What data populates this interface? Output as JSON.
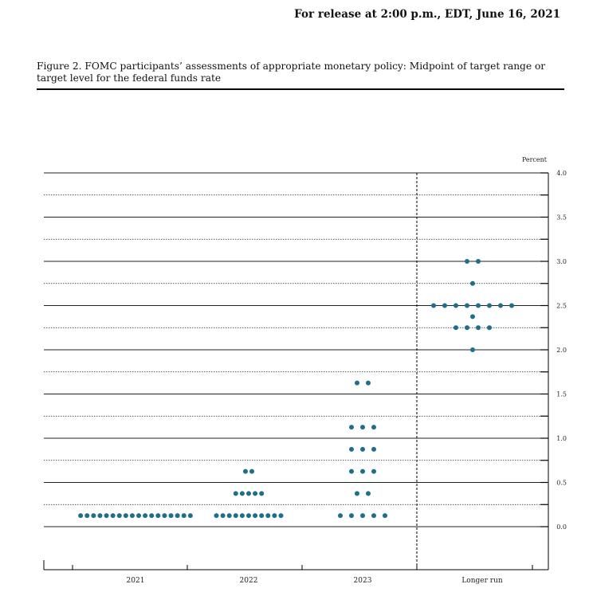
{
  "header": {
    "release": "For release at 2:00 p.m., EDT, June 16, 2021",
    "caption": "Figure 2.  FOMC participants’ assessments of appropriate monetary policy: Midpoint of target range or target level for the federal funds rate"
  },
  "chart_data": {
    "type": "scatter",
    "title": "",
    "ylabel": "Percent",
    "ylim": [
      0,
      4.0
    ],
    "y_ticks": [
      "0.0",
      "0.5",
      "1.0",
      "1.5",
      "2.0",
      "2.5",
      "3.0",
      "3.5",
      "4.0"
    ],
    "categories": [
      "2021",
      "2022",
      "2023",
      "Longer run"
    ],
    "grid": "solid at whole and half percents, dotted at quarter percents",
    "dot_color": "#1f6f8b",
    "dots": [
      {
        "category": "2021",
        "y": 0.125,
        "count": 18
      },
      {
        "category": "2022",
        "y": 0.125,
        "count": 11
      },
      {
        "category": "2022",
        "y": 0.375,
        "count": 5
      },
      {
        "category": "2022",
        "y": 0.625,
        "count": 2
      },
      {
        "category": "2023",
        "y": 0.125,
        "count": 5
      },
      {
        "category": "2023",
        "y": 0.375,
        "count": 2
      },
      {
        "category": "2023",
        "y": 0.625,
        "count": 3
      },
      {
        "category": "2023",
        "y": 0.875,
        "count": 3
      },
      {
        "category": "2023",
        "y": 1.125,
        "count": 3
      },
      {
        "category": "2023",
        "y": 1.625,
        "count": 2
      },
      {
        "category": "Longer run",
        "y": 2.0,
        "count": 1
      },
      {
        "category": "Longer run",
        "y": 2.25,
        "count": 4
      },
      {
        "category": "Longer run",
        "y": 2.375,
        "count": 1
      },
      {
        "category": "Longer run",
        "y": 2.5,
        "count": 8
      },
      {
        "category": "Longer run",
        "y": 2.75,
        "count": 1
      },
      {
        "category": "Longer run",
        "y": 3.0,
        "count": 2
      }
    ]
  }
}
